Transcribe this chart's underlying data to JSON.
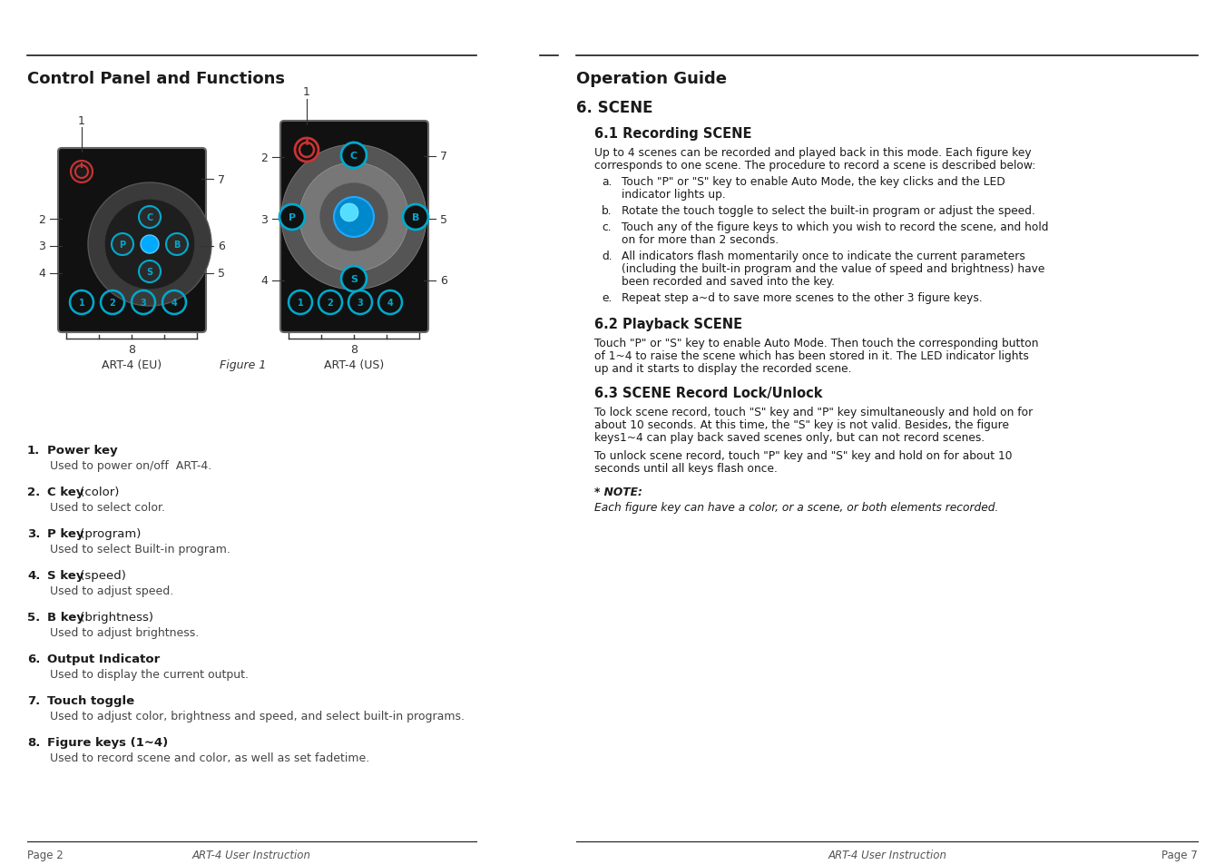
{
  "left_title": "Control Panel and Functions",
  "right_title": "Operation Guide",
  "section6_title": "6. SCENE",
  "section61_title": "6.1 Recording SCENE",
  "section61_intro_1": "Up to 4 scenes can be recorded and played back in this mode. Each figure key",
  "section61_intro_2": "corresponds to one scene. The procedure to record a scene is described below:",
  "section61_steps": [
    [
      "Touch \"P\" or \"S\" key to enable Auto Mode, the key clicks and the LED",
      "indicator lights up."
    ],
    [
      "Rotate the touch toggle to select the built-in program or adjust the speed."
    ],
    [
      "Touch any of the figure keys to which you wish to record the scene, and hold",
      "on for more than 2 seconds."
    ],
    [
      "All indicators flash momentarily once to indicate the current parameters",
      "(including the built-in program and the value of speed and brightness) have",
      "been recorded and saved into the key."
    ],
    [
      "Repeat step a~d to save more scenes to the other 3 figure keys."
    ]
  ],
  "step_labels": [
    "a.",
    "b.",
    "c.",
    "d.",
    "e."
  ],
  "section62_title": "6.2 Playback SCENE",
  "section62_lines": [
    "Touch \"P\" or \"S\" key to enable Auto Mode. Then touch the corresponding button",
    "of 1~4 to raise the scene which has been stored in it. The LED indicator lights",
    "up and it starts to display the recorded scene."
  ],
  "section63_title": "6.3 SCENE Record Lock/Unlock",
  "section63_lines1": [
    "To lock scene record, touch \"S\" key and \"P\" key simultaneously and hold on for",
    "about 10 seconds. At this time, the \"S\" key is not valid. Besides, the figure",
    "keys1~4 can play back saved scenes only, but can not record scenes."
  ],
  "section63_lines2": [
    "To unlock scene record, touch \"P\" key and \"S\" key and hold on for about 10",
    "seconds until all keys flash once."
  ],
  "note_label": "* NOTE:",
  "note_text": "Each figure key can have a color, or a scene, or both elements recorded.",
  "keys": [
    {
      "num": "1.",
      "bold": "Power key",
      "normal": "",
      "desc": "Used to power on/off  ART-4."
    },
    {
      "num": "2.",
      "bold": "C key",
      "normal": " (color)",
      "desc": "Used to select color."
    },
    {
      "num": "3.",
      "bold": "P key",
      "normal": " (program)",
      "desc": "Used to select Built-in program."
    },
    {
      "num": "4.",
      "bold": "S key",
      "normal": " (speed)",
      "desc": "Used to adjust speed."
    },
    {
      "num": "5.",
      "bold": "B key",
      "normal": " (brightness)",
      "desc": "Used to adjust brightness."
    },
    {
      "num": "6.",
      "bold": "Output Indicator",
      "normal": "",
      "desc": "Used to display the current output."
    },
    {
      "num": "7.",
      "bold": "Touch toggle",
      "normal": "",
      "desc": "Used to adjust color, brightness and speed, and select built-in programs."
    },
    {
      "num": "8.",
      "bold": "Figure keys (1~4)",
      "normal": "",
      "desc": "Used to record scene and color, as well as set fadetime."
    }
  ],
  "footer_left_page": "Page 2",
  "footer_center_left": "ART-4 User Instruction",
  "footer_center_right": "ART-4 User Instruction",
  "footer_right_page": "Page 7",
  "bg_color": "#ffffff",
  "text_color": "#1a1a1a",
  "divider_color": "#1a1a1a",
  "device_bg": "#111111",
  "device_edge": "#444444",
  "cyan_color": "#00aacc",
  "red_color": "#cc2222",
  "gray_ring_outer": "#555555",
  "gray_ring_inner": "#777777",
  "blue_spot": "#00aaff"
}
